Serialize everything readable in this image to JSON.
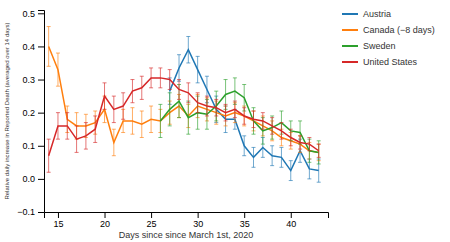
{
  "chart_data": {
    "type": "line",
    "xlabel": "Days since since March 1st, 2020",
    "ylabel": "Relative daily increase in Reported Death (averaged over 14 days)",
    "xlim": [
      13.5,
      44
    ],
    "ylim": [
      -0.1,
      0.51
    ],
    "xticks": [
      15,
      20,
      25,
      30,
      35,
      40
    ],
    "yticks": [
      {
        "value": -0.1,
        "label": "−0.1"
      },
      {
        "value": 0.0,
        "label": "0.0"
      },
      0.1,
      0.2,
      0.3,
      0.4,
      0.5
    ],
    "grid": false,
    "legend": "right",
    "series": [
      {
        "name": "Austria",
        "x": [
          27,
          28,
          29,
          30,
          31,
          32,
          33,
          34,
          35,
          36,
          37,
          38,
          39,
          40,
          41,
          42,
          43
        ],
        "values": [
          0.265,
          0.335,
          0.39,
          0.33,
          0.27,
          0.21,
          0.18,
          0.18,
          0.1,
          0.065,
          0.095,
          0.07,
          0.065,
          0.025,
          0.085,
          0.03,
          0.025
        ],
        "yerr": [
          0.04,
          0.04,
          0.04,
          0.04,
          0.04,
          0.04,
          0.04,
          0.03,
          0.03,
          0.03,
          0.03,
          0.03,
          0.03,
          0.03,
          0.035,
          0.03,
          0.035
        ]
      },
      {
        "name": "Canada (−8 days)",
        "x": [
          14,
          15,
          16,
          17,
          18,
          19,
          20,
          21,
          22,
          23,
          24,
          25,
          26,
          27,
          28,
          29,
          30,
          31,
          32,
          33,
          34,
          35,
          36,
          37,
          38,
          39,
          40,
          41,
          42,
          43
        ],
        "values": [
          0.4,
          0.33,
          0.18,
          0.16,
          0.16,
          0.17,
          0.21,
          0.11,
          0.175,
          0.175,
          0.165,
          0.18,
          0.175,
          0.2,
          0.22,
          0.19,
          0.22,
          0.21,
          0.2,
          0.19,
          0.2,
          0.19,
          0.175,
          0.16,
          0.145,
          0.125,
          0.115,
          0.105,
          0.085,
          0.08
        ],
        "yerr": [
          0.06,
          0.05,
          0.04,
          0.04,
          0.035,
          0.035,
          0.04,
          0.04,
          0.035,
          0.04,
          0.04,
          0.04,
          0.035,
          0.035,
          0.035,
          0.035,
          0.035,
          0.035,
          0.035,
          0.03,
          0.03,
          0.03,
          0.03,
          0.03,
          0.03,
          0.025,
          0.025,
          0.025,
          0.025,
          0.025
        ]
      },
      {
        "name": "Sweden",
        "x": [
          26,
          27,
          28,
          29,
          30,
          31,
          32,
          33,
          34,
          35,
          36,
          37,
          38,
          39,
          40,
          41,
          42,
          43
        ],
        "values": [
          0.175,
          0.21,
          0.235,
          0.185,
          0.2,
          0.195,
          0.22,
          0.255,
          0.265,
          0.245,
          0.175,
          0.145,
          0.155,
          0.17,
          0.145,
          0.14,
          0.085,
          0.08
        ],
        "yerr": [
          0.05,
          0.05,
          0.05,
          0.05,
          0.05,
          0.045,
          0.045,
          0.045,
          0.04,
          0.04,
          0.04,
          0.04,
          0.035,
          0.035,
          0.03,
          0.035,
          0.035,
          0.035
        ]
      },
      {
        "name": "United States",
        "x": [
          14,
          15,
          16,
          17,
          18,
          19,
          20,
          21,
          22,
          23,
          24,
          25,
          26,
          27,
          28,
          29,
          30,
          31,
          32,
          33,
          34,
          35,
          36,
          37,
          38,
          39,
          40,
          41,
          42,
          43
        ],
        "values": [
          0.07,
          0.16,
          0.16,
          0.12,
          0.13,
          0.15,
          0.25,
          0.21,
          0.22,
          0.265,
          0.275,
          0.305,
          0.305,
          0.3,
          0.27,
          0.26,
          0.23,
          0.22,
          0.215,
          0.2,
          0.21,
          0.19,
          0.18,
          0.175,
          0.16,
          0.145,
          0.125,
          0.11,
          0.105,
          0.085
        ],
        "yerr": [
          0.05,
          0.04,
          0.04,
          0.04,
          0.04,
          0.04,
          0.04,
          0.04,
          0.04,
          0.035,
          0.035,
          0.03,
          0.03,
          0.03,
          0.03,
          0.03,
          0.03,
          0.03,
          0.025,
          0.025,
          0.025,
          0.025,
          0.025,
          0.025,
          0.025,
          0.025,
          0.025,
          0.02,
          0.02,
          0.02
        ]
      }
    ]
  }
}
